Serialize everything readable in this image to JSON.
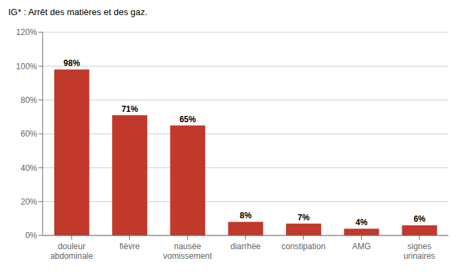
{
  "chart_data": {
    "type": "bar",
    "title": "IG* : Arrêt des matières et des gaz.",
    "categories": [
      "douleur\nabdominale",
      "fièvre",
      "nausée\nvomissement",
      "diarrhée",
      "constipation",
      "AMG",
      "signes\nurinaires"
    ],
    "values": [
      98,
      71,
      65,
      8,
      7,
      4,
      6
    ],
    "value_labels": [
      "98%",
      "71%",
      "65%",
      "8%",
      "7%",
      "4%",
      "6%"
    ],
    "color": "#c0392b",
    "ylim": [
      0,
      120
    ],
    "yticks": [
      {
        "value": 0,
        "label": "0%"
      },
      {
        "value": 20,
        "label": "20%"
      },
      {
        "value": 40,
        "label": "40%"
      },
      {
        "value": 60,
        "label": "60%"
      },
      {
        "value": 80,
        "label": "80%"
      },
      {
        "value": 100,
        "label": "100%"
      },
      {
        "value": 120,
        "label": "120%"
      }
    ],
    "grid": true,
    "data_labels": true
  }
}
